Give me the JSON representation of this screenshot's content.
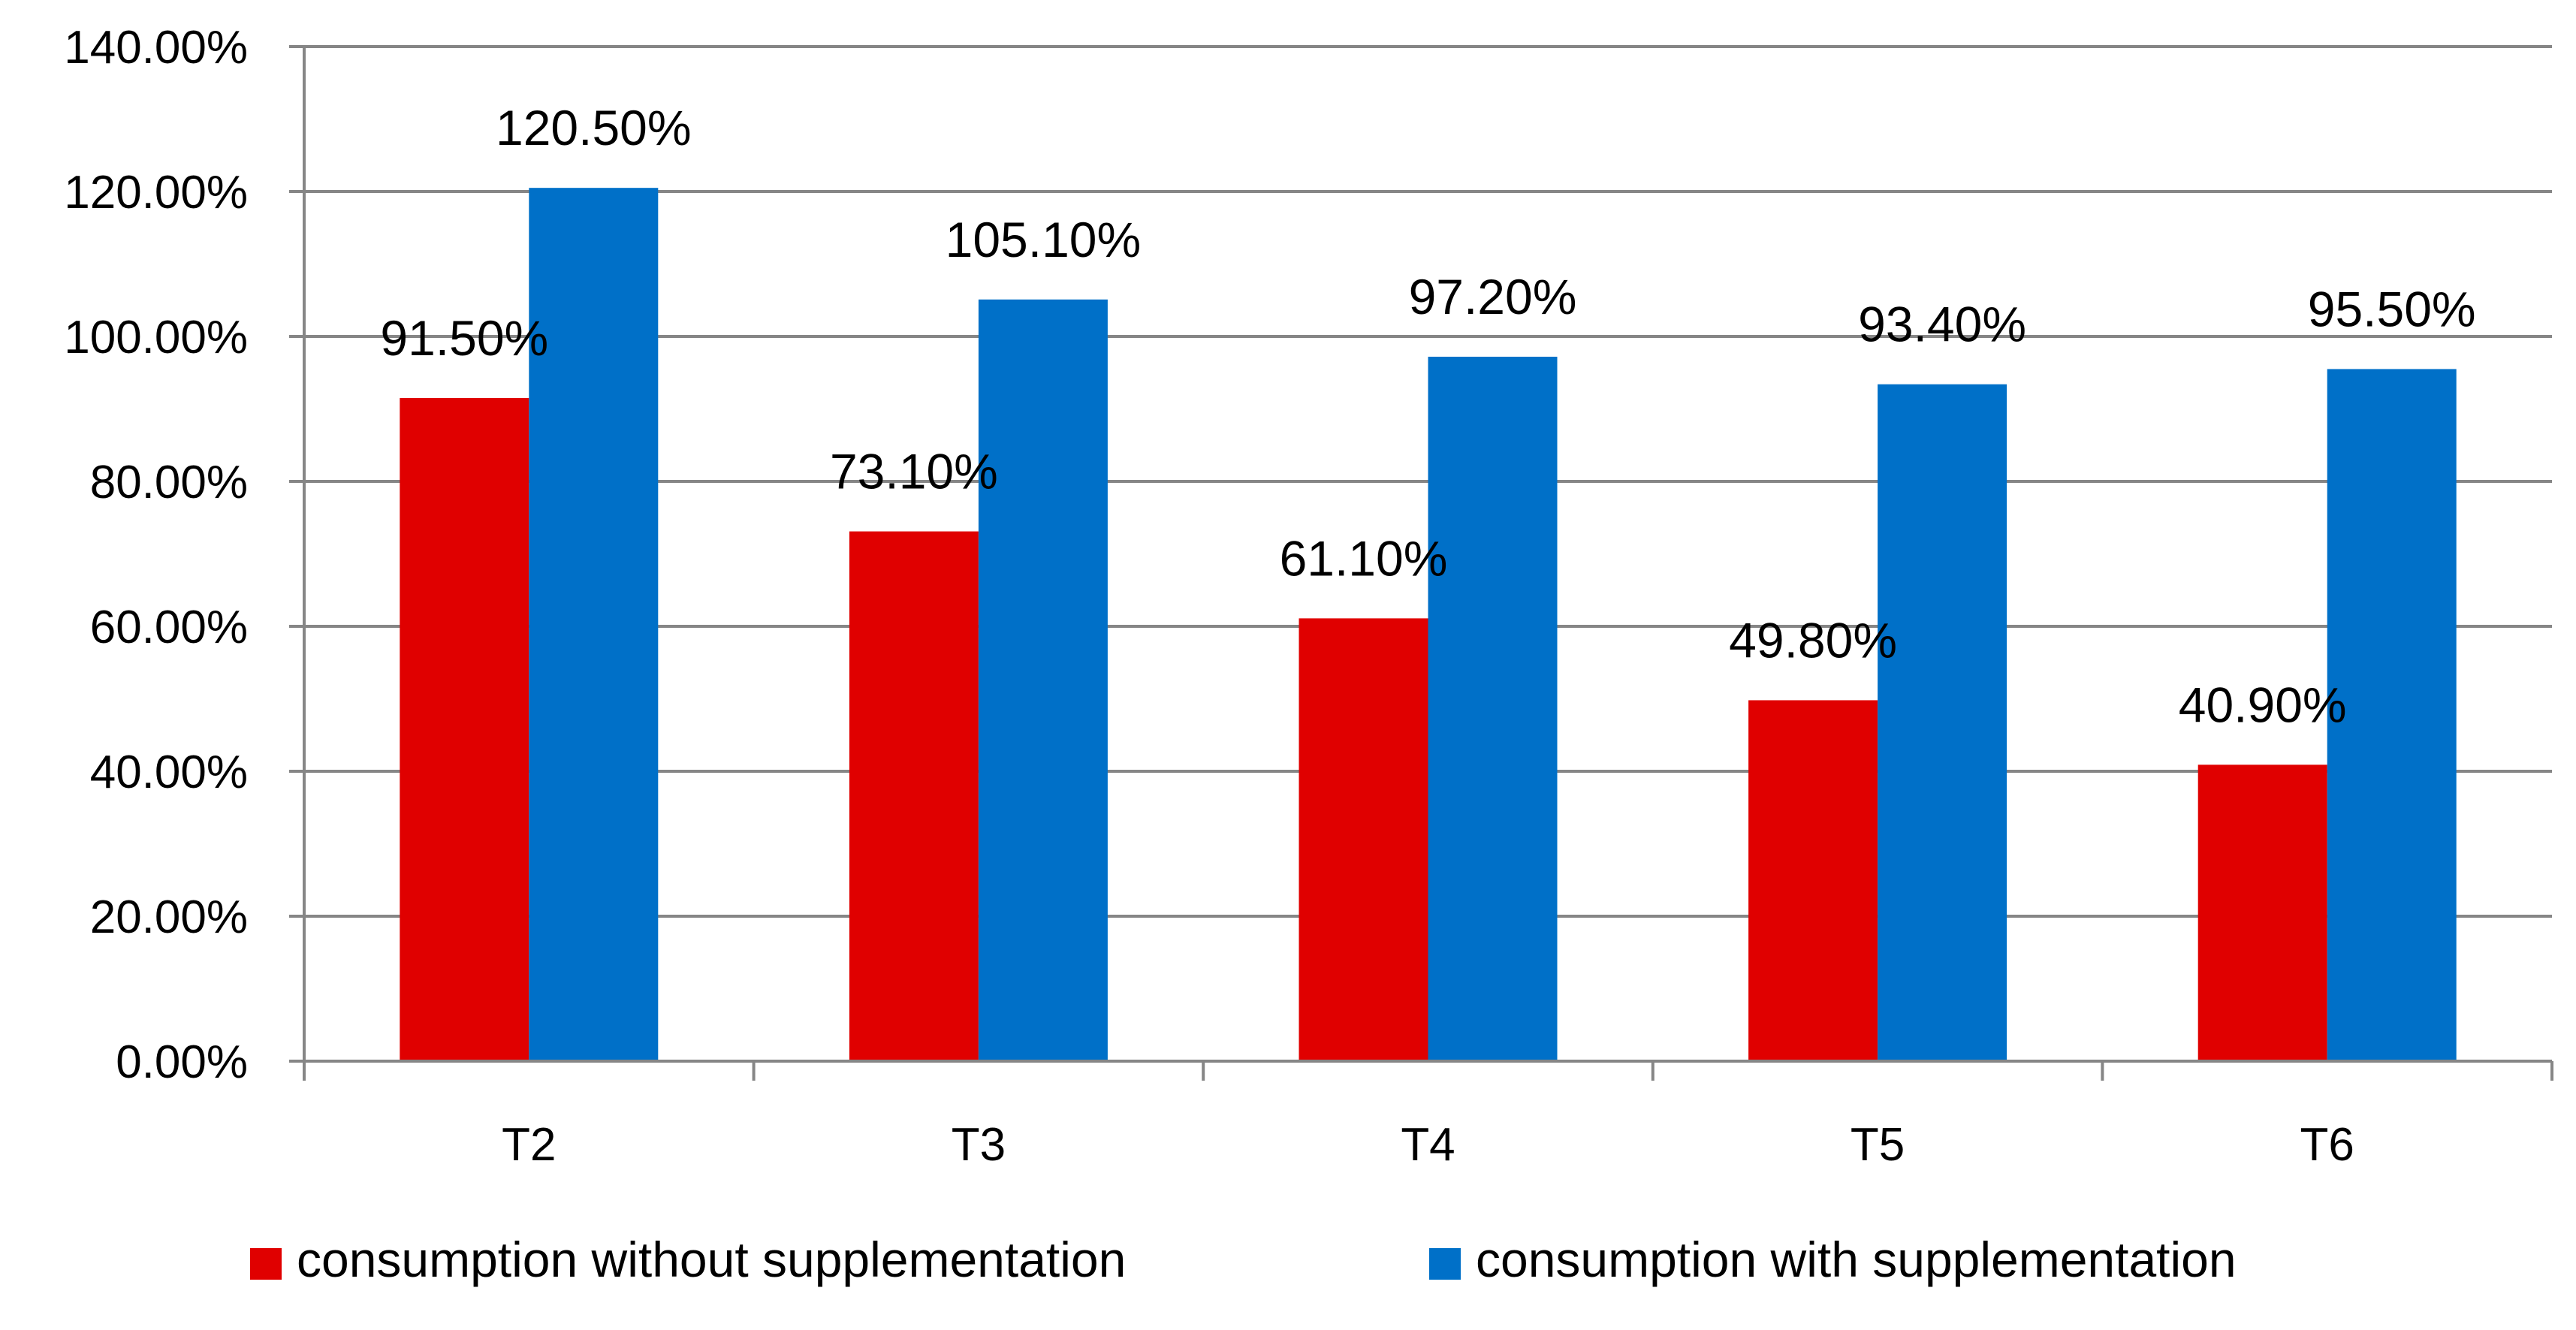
{
  "chart_data": {
    "type": "bar",
    "title": "",
    "xlabel": "",
    "ylabel": "",
    "categories": [
      "T2",
      "T3",
      "T4",
      "T5",
      "T6"
    ],
    "series": [
      {
        "name": "consumption without supplementation",
        "color": "#e00000",
        "values": [
          91.5,
          73.1,
          61.1,
          49.8,
          40.9
        ],
        "labels": [
          "91.50%",
          "73.10%",
          "61.10%",
          "49.80%",
          "40.90%"
        ]
      },
      {
        "name": "consumption with supplementation",
        "color": "#0070c8",
        "values": [
          120.5,
          105.1,
          97.2,
          93.4,
          95.5
        ],
        "labels": [
          "120.50%",
          "105.10%",
          "97.20%",
          "93.40%",
          "95.50%"
        ]
      }
    ],
    "ylim": [
      0,
      140
    ],
    "yticks": [
      0,
      20,
      40,
      60,
      80,
      100,
      120,
      140
    ],
    "ytick_labels": [
      "0.00%",
      "20.00%",
      "40.00%",
      "60.00%",
      "80.00%",
      "100.00%",
      "120.00%",
      "140.00%"
    ],
    "grid": true,
    "grid_color": "#868686",
    "legend": "bottom"
  }
}
